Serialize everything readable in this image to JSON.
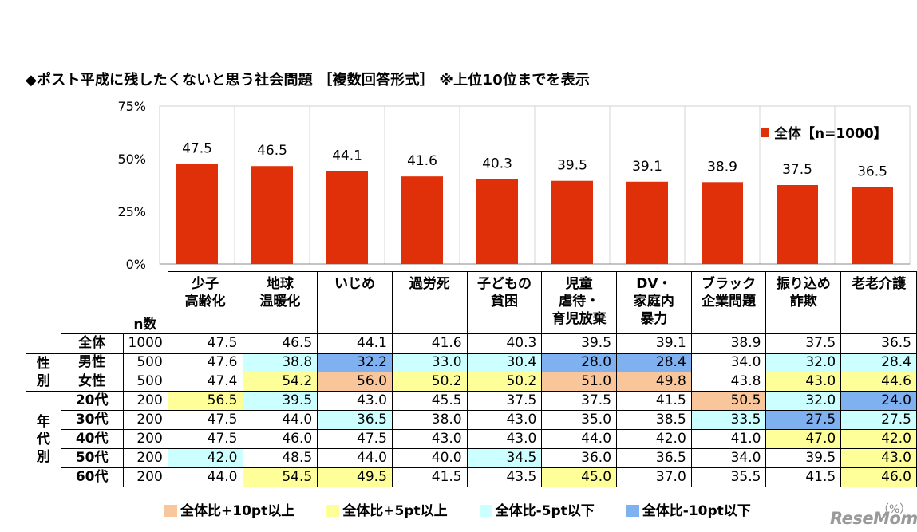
{
  "title": "◆ポスト平成に残したくないと思う社会問題 ［複数回答形式］ ※上位10位までを表示",
  "chart_data": {
    "type": "bar",
    "categories": [
      "少子\n高齢化",
      "地球\n温暖化",
      "いじめ",
      "過労死",
      "子どもの\n貧困",
      "児童\n虐待・\n育児放棄",
      "DV・\n家庭内\n暴力",
      "ブラック\n企業問題",
      "振り込め\n詐欺",
      "老老介護"
    ],
    "series": [
      {
        "name": "全体【n=1000】",
        "values": [
          47.5,
          46.5,
          44.1,
          41.6,
          40.3,
          39.5,
          39.1,
          38.9,
          37.5,
          36.5
        ]
      }
    ],
    "ylim": [
      0,
      75
    ],
    "yticks": [
      0,
      25,
      50,
      75
    ],
    "ytick_labels": [
      "0%",
      "25%",
      "50%",
      "75%"
    ],
    "bar_color": "#E0300A",
    "legend_position": "top-right",
    "table": {
      "n_header": "n数",
      "group_labels": {
        "gender": "性\n別",
        "age": "年\n代\n別"
      },
      "rows": [
        {
          "label": "全体",
          "n": "1000",
          "group": "",
          "values": [
            "47.5",
            "46.5",
            "44.1",
            "41.6",
            "40.3",
            "39.5",
            "39.1",
            "38.9",
            "37.5",
            "36.5"
          ],
          "flags": [
            "",
            "",
            "",
            "",
            "",
            "",
            "",
            "",
            "",
            ""
          ]
        },
        {
          "label": "男性",
          "n": "500",
          "group": "gender",
          "values": [
            "47.6",
            "38.8",
            "32.2",
            "33.0",
            "30.4",
            "28.0",
            "28.4",
            "34.0",
            "32.0",
            "28.4"
          ],
          "flags": [
            "",
            "m5",
            "m10",
            "m5",
            "m5",
            "m10",
            "m10",
            "",
            "m5",
            "m5"
          ]
        },
        {
          "label": "女性",
          "n": "500",
          "group": "gender",
          "values": [
            "47.4",
            "54.2",
            "56.0",
            "50.2",
            "50.2",
            "51.0",
            "49.8",
            "43.8",
            "43.0",
            "44.6"
          ],
          "flags": [
            "",
            "p5",
            "p10",
            "p5",
            "p5",
            "p10",
            "p10",
            "",
            "p5",
            "p5"
          ]
        },
        {
          "label": "20代",
          "n": "200",
          "group": "age",
          "values": [
            "56.5",
            "39.5",
            "43.0",
            "45.5",
            "37.5",
            "37.5",
            "41.5",
            "50.5",
            "32.0",
            "24.0"
          ],
          "flags": [
            "p5",
            "m5",
            "",
            "",
            "",
            "",
            "",
            "p10",
            "m5",
            "m10"
          ]
        },
        {
          "label": "30代",
          "n": "200",
          "group": "age",
          "values": [
            "47.5",
            "44.0",
            "36.5",
            "38.0",
            "43.0",
            "35.0",
            "38.5",
            "33.5",
            "27.5",
            "27.5"
          ],
          "flags": [
            "",
            "",
            "m5",
            "",
            "",
            "",
            "",
            "m5",
            "m10",
            "m5"
          ]
        },
        {
          "label": "40代",
          "n": "200",
          "group": "age",
          "values": [
            "47.5",
            "46.0",
            "47.5",
            "43.0",
            "43.0",
            "44.0",
            "42.0",
            "41.0",
            "47.0",
            "42.0"
          ],
          "flags": [
            "",
            "",
            "",
            "",
            "",
            "",
            "",
            "",
            "p5",
            "p5"
          ]
        },
        {
          "label": "50代",
          "n": "200",
          "group": "age",
          "values": [
            "42.0",
            "48.5",
            "44.0",
            "40.0",
            "34.5",
            "36.0",
            "36.5",
            "34.0",
            "39.5",
            "43.0"
          ],
          "flags": [
            "m5",
            "",
            "",
            "",
            "m5",
            "",
            "",
            "",
            "",
            "p5"
          ]
        },
        {
          "label": "60代",
          "n": "200",
          "group": "age",
          "values": [
            "44.0",
            "54.5",
            "49.5",
            "41.5",
            "43.5",
            "45.0",
            "37.0",
            "35.5",
            "41.5",
            "46.0"
          ],
          "flags": [
            "",
            "p5",
            "p5",
            "",
            "",
            "p5",
            "",
            "",
            "",
            "p5"
          ]
        }
      ]
    },
    "highlight_legend": [
      {
        "key": "p10",
        "label": "全体比+10pt以上",
        "color": "#F9C69C"
      },
      {
        "key": "p5",
        "label": "全体比+5pt以上",
        "color": "#FFFF99"
      },
      {
        "key": "m5",
        "label": "全体比-5pt以下",
        "color": "#CCFFFF"
      },
      {
        "key": "m10",
        "label": "全体比-10pt以下",
        "color": "#7FB0F0"
      }
    ]
  },
  "unit_note": "（%）",
  "watermark": "ReseMom"
}
